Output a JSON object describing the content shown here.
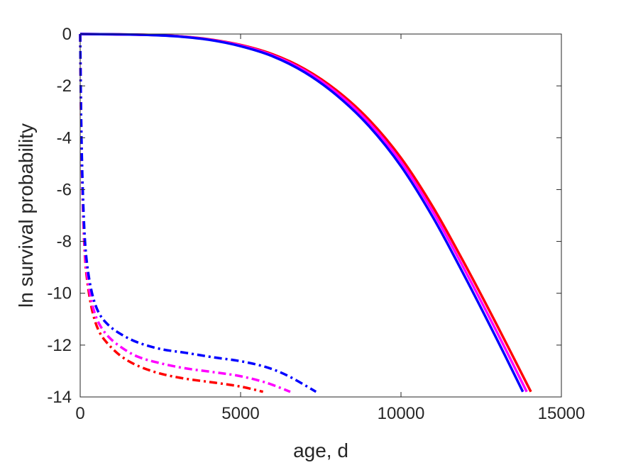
{
  "chart_data": {
    "type": "line",
    "title": "",
    "xlabel": "age, d",
    "ylabel": "ln survival probability",
    "xlim": [
      0,
      15000
    ],
    "ylim": [
      -14,
      0
    ],
    "xticks": [
      0,
      5000,
      10000,
      15000
    ],
    "yticks": [
      0,
      -2,
      -4,
      -6,
      -8,
      -10,
      -12,
      -14
    ],
    "grid": false,
    "legend": "none",
    "series": [
      {
        "color": "#ff0000",
        "style": "solid",
        "x": [
          0,
          1000,
          2000,
          3000,
          4000,
          5000,
          6000,
          7000,
          8000,
          9000,
          10000,
          11000,
          12000,
          13000,
          14050
        ],
        "y": [
          0,
          -0.01,
          -0.03,
          -0.08,
          -0.2,
          -0.42,
          -0.78,
          -1.35,
          -2.18,
          -3.3,
          -4.78,
          -6.68,
          -8.9,
          -11.25,
          -13.8
        ]
      },
      {
        "color": "#ff00ff",
        "style": "solid",
        "x": [
          0,
          1000,
          2000,
          3000,
          4000,
          5000,
          6000,
          7000,
          8000,
          9000,
          10000,
          11000,
          12000,
          13000,
          13920
        ],
        "y": [
          0,
          -0.01,
          -0.03,
          -0.08,
          -0.21,
          -0.44,
          -0.82,
          -1.41,
          -2.27,
          -3.42,
          -4.93,
          -6.87,
          -9.13,
          -11.52,
          -13.8
        ]
      },
      {
        "color": "#0000ff",
        "style": "solid",
        "x": [
          0,
          1000,
          2000,
          3000,
          4000,
          5000,
          6000,
          7000,
          8000,
          9000,
          10000,
          11000,
          12000,
          13000,
          13800
        ],
        "y": [
          0,
          -0.01,
          -0.03,
          -0.09,
          -0.22,
          -0.47,
          -0.86,
          -1.48,
          -2.37,
          -3.55,
          -5.1,
          -7.08,
          -9.38,
          -11.8,
          -13.8
        ]
      },
      {
        "color": "#ff0000",
        "style": "dashdot",
        "x": [
          0,
          30,
          80,
          150,
          250,
          400,
          600,
          900,
          1300,
          1800,
          2500,
          3300,
          4200,
          5000,
          5700
        ],
        "y": [
          0,
          -3.5,
          -6.5,
          -8.6,
          -9.8,
          -10.8,
          -11.5,
          -12.0,
          -12.45,
          -12.8,
          -13.1,
          -13.3,
          -13.45,
          -13.6,
          -13.8
        ]
      },
      {
        "color": "#ff00ff",
        "style": "dashdot",
        "x": [
          0,
          30,
          80,
          150,
          250,
          400,
          600,
          900,
          1300,
          1800,
          2500,
          3300,
          4200,
          5000,
          5800,
          6550
        ],
        "y": [
          0,
          -3.4,
          -6.3,
          -8.4,
          -9.6,
          -10.55,
          -11.2,
          -11.7,
          -12.1,
          -12.45,
          -12.7,
          -12.9,
          -13.05,
          -13.2,
          -13.45,
          -13.8
        ]
      },
      {
        "color": "#0000ff",
        "style": "dashdot",
        "x": [
          0,
          30,
          80,
          150,
          250,
          400,
          600,
          900,
          1300,
          1800,
          2500,
          3300,
          4200,
          5000,
          5800,
          6500,
          7350
        ],
        "y": [
          0,
          -3.3,
          -6.0,
          -8.0,
          -9.2,
          -10.15,
          -10.8,
          -11.25,
          -11.6,
          -11.9,
          -12.15,
          -12.3,
          -12.48,
          -12.62,
          -12.85,
          -13.2,
          -13.8
        ]
      }
    ]
  }
}
